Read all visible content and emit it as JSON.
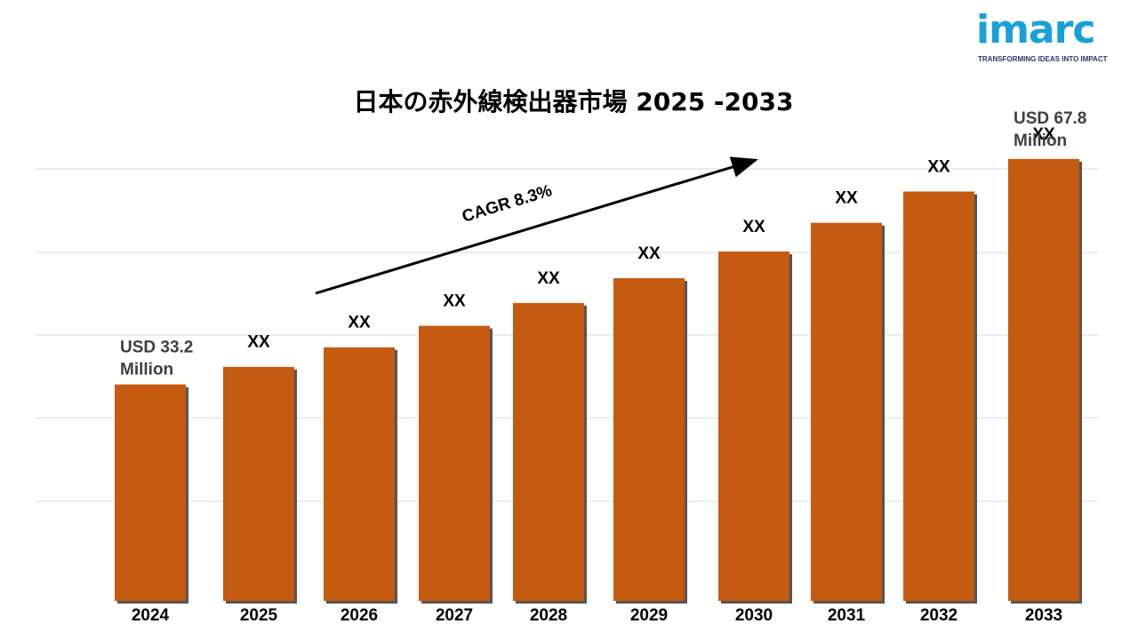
{
  "logo": {
    "wordmark": "imarc",
    "tagline": "TRANSFORMING IDEAS INTO IMPACT",
    "color": "#1aa0d8"
  },
  "colors": {
    "bar": "#c55a11",
    "bar_shadow": "#555555",
    "grid": "#d9d9d9",
    "text": "#000000",
    "annotation_text": "#404040"
  },
  "chart_data": {
    "type": "bar",
    "title": "日本の赤外線検出器市場  2025 -2033",
    "xlabel": "",
    "ylabel": "",
    "categories": [
      "2024",
      "2025",
      "2026",
      "2027",
      "2028",
      "2029",
      "2030",
      "2031",
      "2032",
      "2033"
    ],
    "values": [
      33.2,
      35.9,
      38.9,
      42.2,
      45.7,
      49.5,
      53.6,
      58.0,
      62.8,
      67.8
    ],
    "data_labels": [
      "",
      "XX",
      "XX",
      "XX",
      "XX",
      "XX",
      "XX",
      "XX",
      "XX",
      "XX"
    ],
    "first_bar_label": [
      "USD 33.2",
      "Million"
    ],
    "last_bar_label": [
      "USD 67.8",
      "Million"
    ],
    "cagr_label": "CAGR 8.3%",
    "ylim": [
      0,
      72
    ],
    "grid": true,
    "legend": "none"
  }
}
